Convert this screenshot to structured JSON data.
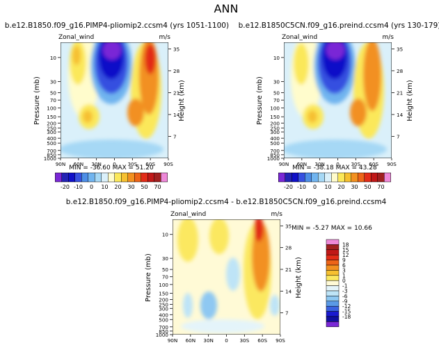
{
  "page": {
    "title": "ANN"
  },
  "colors": {
    "abs_scale": [
      "#7a28d6",
      "#2323b4",
      "#1010c8",
      "#3650e0",
      "#4d8ee6",
      "#70b4ef",
      "#a6d8f5",
      "#daf0fa",
      "#fffccc",
      "#fbe85a",
      "#f6c030",
      "#f29020",
      "#ed6418",
      "#e22c18",
      "#c01818",
      "#a02020",
      "#ee88d8"
    ],
    "diff_scale": [
      "#7a28d6",
      "#1010a0",
      "#1a1ad0",
      "#3a62e0",
      "#5a9ae6",
      "#8ec8f2",
      "#bee4f7",
      "#e4f4fa",
      "#fffad6",
      "#fbe860",
      "#f6c030",
      "#f29020",
      "#ed6418",
      "#e22c18",
      "#c01818",
      "#a02020",
      "#ee88d8"
    ]
  },
  "chart_data": [
    {
      "type": "heatmap",
      "title": "b.e12.B1850.f09_g16.PIMP4-pliomip2.ccsm4 (yrs 1051-1100)",
      "subtitle_left": "Zonal_wind",
      "units": "m/s",
      "ylabel": "Pressure (mb)",
      "ylabel_right": "Height (km)",
      "x_ticks": [
        "90N",
        "60N",
        "30N",
        "0",
        "30S",
        "60S",
        "90S"
      ],
      "y_ticks": [
        "10",
        "30",
        "50",
        "70",
        "100",
        "150",
        "200",
        "250",
        "300",
        "400",
        "500",
        "700",
        "850",
        "1000"
      ],
      "y_ticks_right": [
        "35",
        "28",
        "21",
        "14",
        "7"
      ],
      "min": -36.6,
      "max": 51.2,
      "stats_text": "MIN = -36.60   MAX = 51.20",
      "colorbar": {
        "labels": [
          "-20",
          "-10",
          "0",
          "10",
          "20",
          "30",
          "50",
          "70"
        ]
      }
    },
    {
      "type": "heatmap",
      "title": "b.e12.B1850C5CN.f09_g16.preind.ccsm4 (yrs 130-179)",
      "subtitle_left": "Zonal_wind",
      "units": "m/s",
      "ylabel": "Pressure (mb)",
      "ylabel_right": "Height (km)",
      "x_ticks": [
        "90N",
        "60N",
        "30N",
        "0",
        "30S",
        "60S",
        "90S"
      ],
      "y_ticks": [
        "10",
        "30",
        "50",
        "70",
        "100",
        "150",
        "200",
        "250",
        "300",
        "400",
        "500",
        "700",
        "850",
        "1000"
      ],
      "y_ticks_right": [
        "35",
        "28",
        "21",
        "14",
        "7"
      ],
      "min": -38.18,
      "max": 43.28,
      "stats_text": "MIN = -38.18   MAX = 43.28",
      "colorbar": {
        "labels": [
          "-20",
          "-10",
          "0",
          "10",
          "20",
          "30",
          "50",
          "70"
        ]
      }
    },
    {
      "type": "heatmap",
      "title": "b.e12.B1850.f09_g16.PIMP4-pliomip2.ccsm4 - b.e12.B1850C5CN.f09_g16.preind.ccsm4",
      "subtitle_left": "Zonal_wind",
      "units": "m/s",
      "ylabel": "Pressure (mb)",
      "ylabel_right": "Height (km)",
      "x_ticks": [
        "90N",
        "60N",
        "30N",
        "0",
        "30S",
        "60S",
        "90S"
      ],
      "y_ticks": [
        "10",
        "30",
        "50",
        "70",
        "100",
        "150",
        "200",
        "250",
        "300",
        "400",
        "500",
        "700",
        "850",
        "1000"
      ],
      "y_ticks_right": [
        "35",
        "28",
        "21",
        "14",
        "7"
      ],
      "min": -5.27,
      "max": 10.66,
      "stats_text": "MIN =  -5.27   MAX =  10.66",
      "colorbar": {
        "labels": [
          "18",
          "15",
          "12",
          "9",
          "6",
          "3",
          "1",
          "0",
          "-1",
          "-3",
          "-6",
          "-9",
          "-12",
          "-15",
          "-18"
        ]
      }
    }
  ]
}
